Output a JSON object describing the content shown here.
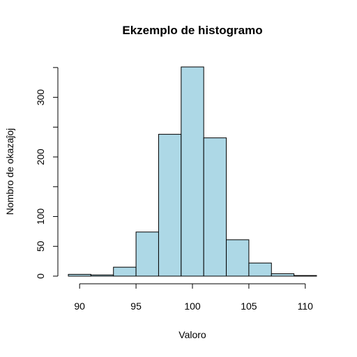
{
  "chart_data": {
    "type": "bar",
    "title": "Ekzemplo de histogramo",
    "xlabel": "Valoro",
    "ylabel": "Nombro de okazaĵoj",
    "bins": [
      {
        "x0": 89,
        "x1": 91,
        "count": 3
      },
      {
        "x0": 91,
        "x1": 93,
        "count": 2
      },
      {
        "x0": 93,
        "x1": 95,
        "count": 15
      },
      {
        "x0": 95,
        "x1": 97,
        "count": 74
      },
      {
        "x0": 97,
        "x1": 99,
        "count": 238
      },
      {
        "x0": 99,
        "x1": 101,
        "count": 351
      },
      {
        "x0": 101,
        "x1": 103,
        "count": 232
      },
      {
        "x0": 103,
        "x1": 105,
        "count": 61
      },
      {
        "x0": 105,
        "x1": 107,
        "count": 22
      },
      {
        "x0": 107,
        "x1": 109,
        "count": 4
      },
      {
        "x0": 109,
        "x1": 111,
        "count": 1
      }
    ],
    "x_ticks": [
      90,
      95,
      100,
      105,
      110
    ],
    "y_ticks": [
      0,
      50,
      100,
      200,
      300
    ],
    "y_minor_ticks": [
      150,
      250,
      350
    ],
    "xlim": [
      89,
      111
    ],
    "ylim": [
      0,
      351
    ],
    "bar_color": "#add8e6",
    "grid": false,
    "legend": "none"
  }
}
